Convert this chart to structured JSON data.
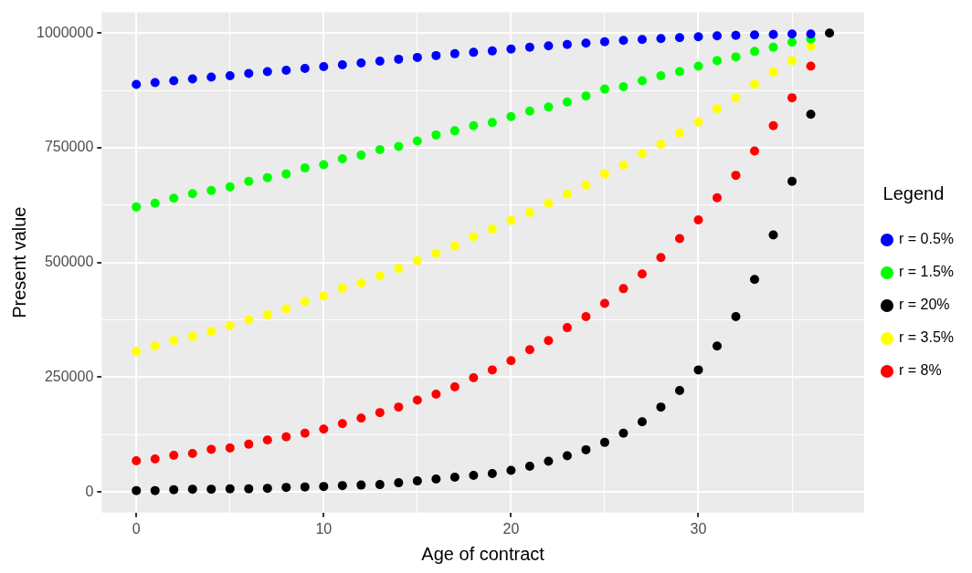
{
  "chart_data": {
    "type": "scatter",
    "xlabel": "Age of contract",
    "ylabel": "Present value",
    "legend_title": "Legend",
    "legend": "right",
    "grid": true,
    "marker": "circle",
    "x": [
      0,
      1,
      2,
      3,
      4,
      5,
      6,
      7,
      8,
      9,
      10,
      11,
      12,
      13,
      14,
      15,
      16,
      17,
      18,
      19,
      20,
      21,
      22,
      23,
      24,
      25,
      26,
      27,
      28,
      29,
      30,
      31,
      32,
      33,
      34,
      35,
      36
    ],
    "xlim": [
      -1.85,
      38.85
    ],
    "xticks": [
      0,
      {
        "value": 5,
        "label": null
      },
      10,
      {
        "value": 15,
        "label": null
      },
      20,
      {
        "value": 25,
        "label": null
      },
      30,
      {
        "value": 35,
        "label": null
      }
    ],
    "ylim": [
      -45000,
      1045000
    ],
    "yticks": [
      0,
      {
        "value": 125000,
        "label": null
      },
      250000,
      {
        "value": 375000,
        "label": null
      },
      500000,
      {
        "value": 625000,
        "label": null
      },
      750000,
      {
        "value": 875000,
        "label": null
      },
      1000000
    ],
    "series": [
      {
        "name": "r = 0.5%",
        "color": "#0000ff",
        "values": [
          888000,
          892000,
          896000,
          900000,
          904000,
          907000,
          912000,
          916000,
          919000,
          923000,
          927000,
          931000,
          935000,
          939000,
          943000,
          947000,
          951000,
          955000,
          958000,
          961000,
          965000,
          969000,
          972000,
          975000,
          978000,
          981000,
          984000,
          986000,
          988000,
          990000,
          992000,
          994000,
          995000,
          996000,
          997000,
          998000,
          998000
        ]
      },
      {
        "name": "r = 1.5%",
        "color": "#00ff00",
        "values": [
          621000,
          629000,
          640000,
          650000,
          657000,
          665000,
          677000,
          685000,
          693000,
          706000,
          713000,
          726000,
          734000,
          746000,
          753000,
          765000,
          778000,
          787000,
          798000,
          805000,
          818000,
          830000,
          839000,
          850000,
          863000,
          878000,
          883000,
          896000,
          907000,
          916000,
          928000,
          940000,
          948000,
          960000,
          969000,
          980000,
          987000
        ]
      },
      {
        "name": "r = 20%",
        "color": "#000000",
        "x": [
          0,
          1,
          2,
          3,
          4,
          5,
          6,
          7,
          8,
          9,
          10,
          11,
          12,
          13,
          14,
          15,
          16,
          17,
          18,
          19,
          20,
          21,
          22,
          23,
          24,
          25,
          26,
          27,
          28,
          29,
          30,
          31,
          32,
          33,
          34,
          35,
          36,
          37
        ],
        "values": [
          3000,
          3000,
          5000,
          6000,
          6000,
          7000,
          7000,
          8000,
          10000,
          11000,
          12000,
          14000,
          15000,
          16000,
          20000,
          24000,
          28000,
          32000,
          36000,
          40000,
          47000,
          56000,
          67000,
          79000,
          92000,
          108000,
          128000,
          153000,
          185000,
          221000,
          266000,
          318000,
          382000,
          463000,
          560000,
          677000,
          823000,
          1000000
        ]
      },
      {
        "name": "r = 3.5%",
        "color": "#ffff00",
        "values": [
          306000,
          318000,
          330000,
          339000,
          350000,
          362000,
          375000,
          386000,
          399000,
          415000,
          427000,
          444000,
          455000,
          471000,
          487000,
          504000,
          520000,
          536000,
          556000,
          573000,
          592000,
          609000,
          629000,
          649000,
          669000,
          693000,
          712000,
          737000,
          758000,
          782000,
          806000,
          835000,
          859000,
          888000,
          915000,
          940000,
          971000
        ]
      },
      {
        "name": "r = 8%",
        "color": "#ff0000",
        "values": [
          68000,
          72000,
          80000,
          84000,
          93000,
          96000,
          104000,
          113000,
          120000,
          128000,
          137000,
          149000,
          161000,
          173000,
          185000,
          200000,
          213000,
          229000,
          249000,
          266000,
          286000,
          310000,
          330000,
          358000,
          382000,
          411000,
          443000,
          475000,
          511000,
          552000,
          593000,
          641000,
          690000,
          743000,
          798000,
          859000,
          928000
        ]
      }
    ]
  }
}
